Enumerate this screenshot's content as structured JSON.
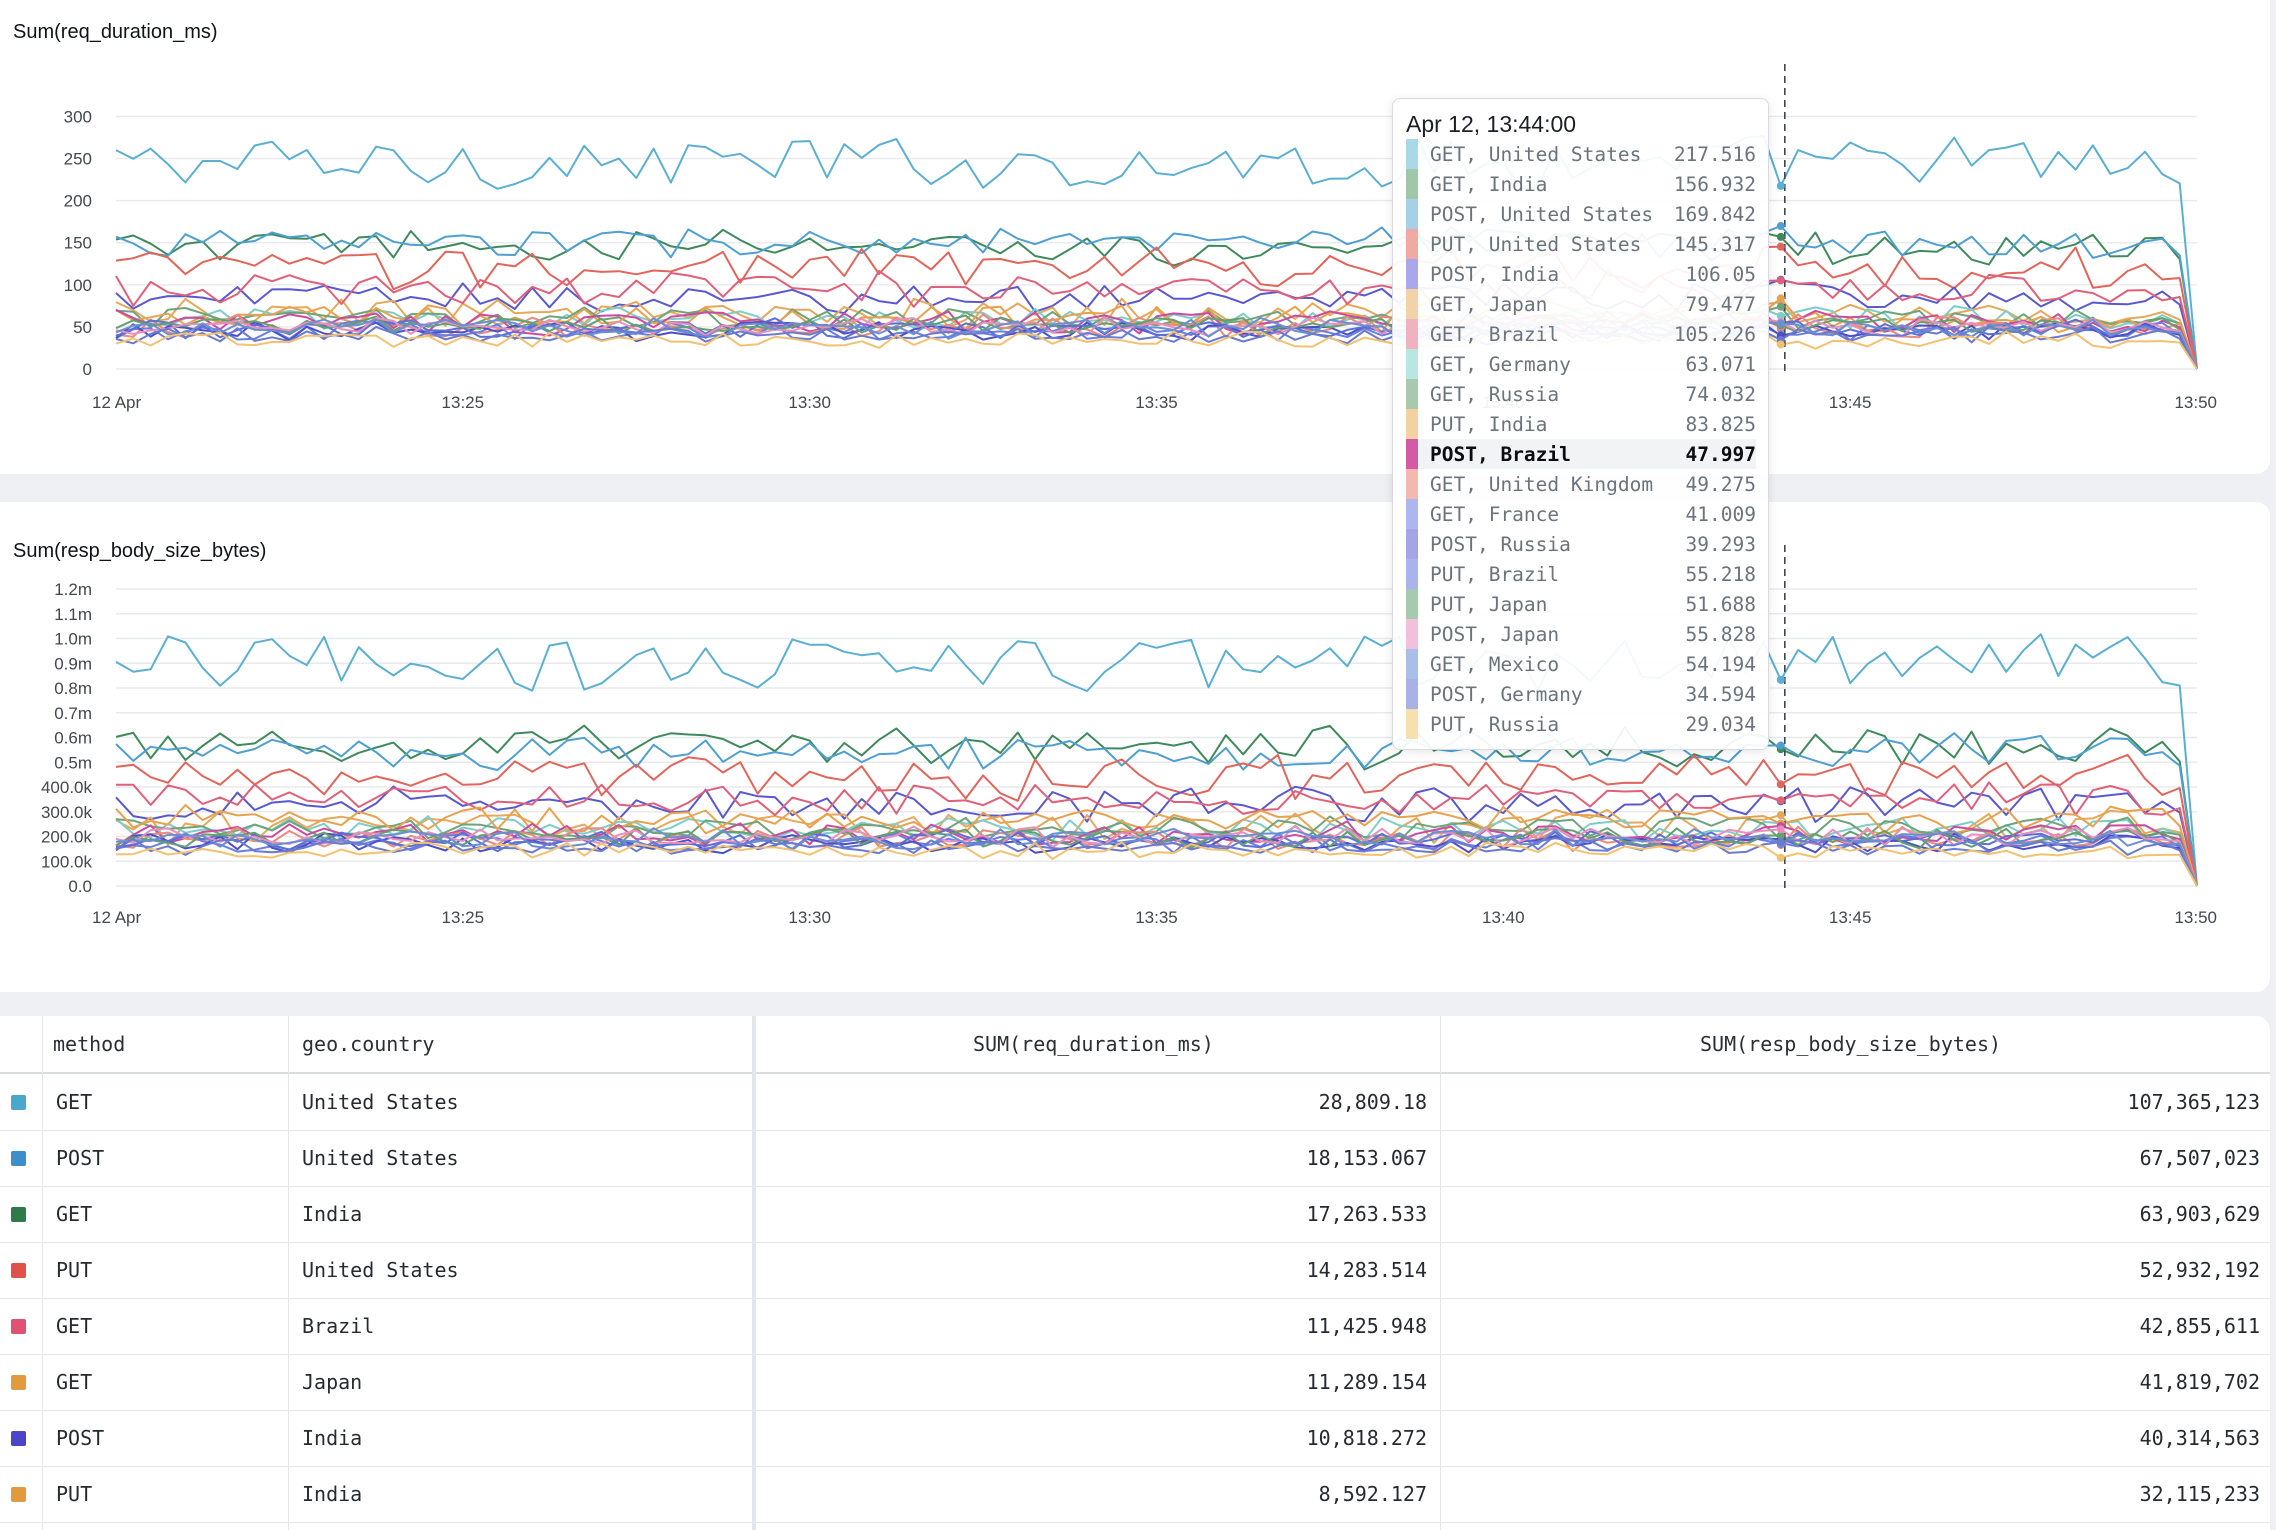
{
  "chart_data": [
    {
      "type": "line",
      "title": "Sum(req_duration_ms)",
      "ylim": [
        0,
        310
      ],
      "yticks": [
        "0",
        "50",
        "100",
        "150",
        "200",
        "250",
        "300"
      ],
      "xticks": [
        "12 Apr",
        "13:25",
        "13:30",
        "13:35",
        "13:40",
        "13:45",
        "13:50"
      ],
      "xrange": [
        "13:20",
        "13:50"
      ],
      "cursor_time": "13:44",
      "grid": true,
      "series": [
        {
          "name": "GET, United States",
          "color": "#5bafd1",
          "base": 245,
          "amp": 28,
          "hover": 217.516
        },
        {
          "name": "GET, India",
          "color": "#3f8a5c",
          "base": 145,
          "amp": 18,
          "hover": 156.932
        },
        {
          "name": "POST, United States",
          "color": "#4f9fd0",
          "base": 150,
          "amp": 16,
          "hover": 169.842
        },
        {
          "name": "PUT, United States",
          "color": "#e0655a",
          "base": 120,
          "amp": 22,
          "hover": 145.317
        },
        {
          "name": "POST, India",
          "color": "#5a58cf",
          "base": 85,
          "amp": 15,
          "hover": 106.05
        },
        {
          "name": "GET, Japan",
          "color": "#e6a85a",
          "base": 65,
          "amp": 16,
          "hover": 79.477
        },
        {
          "name": "GET, Brazil",
          "color": "#e0607a",
          "base": 95,
          "amp": 18,
          "hover": 105.226
        },
        {
          "name": "GET, Germany",
          "color": "#7dcdc8",
          "base": 60,
          "amp": 12,
          "hover": 63.071
        },
        {
          "name": "GET, Russia",
          "color": "#6fa37a",
          "base": 60,
          "amp": 12,
          "hover": 74.032
        },
        {
          "name": "PUT, India",
          "color": "#e8a24e",
          "base": 60,
          "amp": 14,
          "hover": 83.825
        },
        {
          "name": "POST, Brazil",
          "color": "#cc4aa0",
          "base": 55,
          "amp": 12,
          "hover": 47.997
        },
        {
          "name": "GET, United Kingdom",
          "color": "#ea8a7c",
          "base": 50,
          "amp": 12,
          "hover": 49.275
        },
        {
          "name": "GET, France",
          "color": "#6b7fe0",
          "base": 45,
          "amp": 10,
          "hover": 41.009
        },
        {
          "name": "POST, Russia",
          "color": "#4e4ec6",
          "base": 45,
          "amp": 10,
          "hover": 39.293
        },
        {
          "name": "PUT, Brazil",
          "color": "#5a6fd8",
          "base": 48,
          "amp": 10,
          "hover": 55.218
        },
        {
          "name": "PUT, Japan",
          "color": "#63a070",
          "base": 52,
          "amp": 10,
          "hover": 51.688
        },
        {
          "name": "POST, Japan",
          "color": "#e88fbe",
          "base": 50,
          "amp": 10,
          "hover": 55.828
        },
        {
          "name": "GET, Mexico",
          "color": "#6c8ed2",
          "base": 48,
          "amp": 10,
          "hover": 54.194
        },
        {
          "name": "POST, Germany",
          "color": "#6a7ad0",
          "base": 40,
          "amp": 9,
          "hover": 34.594
        },
        {
          "name": "PUT, Russia",
          "color": "#f2c270",
          "base": 35,
          "amp": 9,
          "hover": 29.034
        }
      ]
    },
    {
      "type": "line",
      "title": "Sum(resp_body_size_bytes)",
      "ylim": [
        0,
        1200000
      ],
      "yticks": [
        "0.0",
        "100.0k",
        "200.0k",
        "300.0k",
        "400.0k",
        "0.5m",
        "0.6m",
        "0.7m",
        "0.8m",
        "0.9m",
        "1.0m",
        "1.1m",
        "1.2m"
      ],
      "xticks": [
        "12 Apr",
        "13:25",
        "13:30",
        "13:35",
        "13:40",
        "13:45",
        "13:50"
      ],
      "xrange": [
        "13:20",
        "13:50"
      ],
      "cursor_time": "13:44",
      "grid": true,
      "series": [
        {
          "name": "GET, United States",
          "color": "#5bafd1",
          "base": 900000,
          "amp": 100000
        },
        {
          "name": "GET, India",
          "color": "#3f8a5c",
          "base": 560000,
          "amp": 70000
        },
        {
          "name": "POST, United States",
          "color": "#4f9fd0",
          "base": 540000,
          "amp": 60000
        },
        {
          "name": "PUT, United States",
          "color": "#e0655a",
          "base": 440000,
          "amp": 80000
        },
        {
          "name": "POST, India",
          "color": "#5a58cf",
          "base": 330000,
          "amp": 60000
        },
        {
          "name": "GET, Japan",
          "color": "#e6a85a",
          "base": 240000,
          "amp": 60000
        },
        {
          "name": "GET, Brazil",
          "color": "#e0607a",
          "base": 350000,
          "amp": 60000
        },
        {
          "name": "GET, Germany",
          "color": "#7dcdc8",
          "base": 230000,
          "amp": 45000
        },
        {
          "name": "GET, Russia",
          "color": "#6fa37a",
          "base": 230000,
          "amp": 45000
        },
        {
          "name": "PUT, India",
          "color": "#e8a24e",
          "base": 270000,
          "amp": 50000
        },
        {
          "name": "POST, Brazil",
          "color": "#cc4aa0",
          "base": 210000,
          "amp": 40000
        },
        {
          "name": "GET, United Kingdom",
          "color": "#ea8a7c",
          "base": 190000,
          "amp": 40000
        },
        {
          "name": "GET, France",
          "color": "#6b7fe0",
          "base": 175000,
          "amp": 35000
        },
        {
          "name": "POST, Russia",
          "color": "#4e4ec6",
          "base": 170000,
          "amp": 35000
        },
        {
          "name": "PUT, Brazil",
          "color": "#5a6fd8",
          "base": 185000,
          "amp": 35000
        },
        {
          "name": "PUT, Japan",
          "color": "#63a070",
          "base": 195000,
          "amp": 35000
        },
        {
          "name": "POST, Japan",
          "color": "#e88fbe",
          "base": 200000,
          "amp": 35000
        },
        {
          "name": "GET, Mexico",
          "color": "#6c8ed2",
          "base": 190000,
          "amp": 35000
        },
        {
          "name": "POST, Germany",
          "color": "#6a7ad0",
          "base": 160000,
          "amp": 30000
        },
        {
          "name": "PUT, Russia",
          "color": "#f2c270",
          "base": 140000,
          "amp": 30000
        }
      ]
    }
  ],
  "tooltip": {
    "title": "Apr 12, 13:44:00",
    "highlighted": "POST, Brazil",
    "rows": [
      {
        "label": "GET, United States",
        "value": "217.516",
        "color": "#a9d8e8"
      },
      {
        "label": "GET, India",
        "value": "156.932",
        "color": "#9fc7a8"
      },
      {
        "label": "POST, United States",
        "value": "169.842",
        "color": "#a6cfe8"
      },
      {
        "label": "PUT, United States",
        "value": "145.317",
        "color": "#f0aaa3"
      },
      {
        "label": "POST, India",
        "value": "106.05",
        "color": "#aaa8ea"
      },
      {
        "label": "GET, Japan",
        "value": "79.477",
        "color": "#f2d3a8"
      },
      {
        "label": "GET, Brazil",
        "value": "105.226",
        "color": "#f0b2c0"
      },
      {
        "label": "GET, Germany",
        "value": "63.071",
        "color": "#b8e6e2"
      },
      {
        "label": "GET, Russia",
        "value": "74.032",
        "color": "#a9c9ae"
      },
      {
        "label": "PUT, India",
        "value": "83.825",
        "color": "#f4d1a3"
      },
      {
        "label": "POST, Brazil",
        "value": "47.997",
        "color": "#d45aa8"
      },
      {
        "label": "GET, United Kingdom",
        "value": "49.275",
        "color": "#f3b9b0"
      },
      {
        "label": "GET, France",
        "value": "41.009",
        "color": "#aeb6ef"
      },
      {
        "label": "POST, Russia",
        "value": "39.293",
        "color": "#a5a4e4"
      },
      {
        "label": "PUT, Brazil",
        "value": "55.218",
        "color": "#a9b3ec"
      },
      {
        "label": "PUT, Japan",
        "value": "51.688",
        "color": "#a6caad"
      },
      {
        "label": "POST, Japan",
        "value": "55.828",
        "color": "#f2c0dc"
      },
      {
        "label": "GET, Mexico",
        "value": "54.194",
        "color": "#aabfe7"
      },
      {
        "label": "POST, Germany",
        "value": "34.594",
        "color": "#a9b1e7"
      },
      {
        "label": "PUT, Russia",
        "value": "29.034",
        "color": "#f8dfae"
      }
    ]
  },
  "table": {
    "headers": {
      "method": "method",
      "country": "geo.country",
      "duration": "SUM(req_duration_ms)",
      "size": "SUM(resp_body_size_bytes)"
    },
    "rows": [
      {
        "color": "#4aa8cf",
        "method": "GET",
        "country": "United States",
        "duration": "28,809.18",
        "size": "107,365,123"
      },
      {
        "color": "#3d8fcc",
        "method": "POST",
        "country": "United States",
        "duration": "18,153.067",
        "size": "67,507,023"
      },
      {
        "color": "#2f7a4a",
        "method": "GET",
        "country": "India",
        "duration": "17,263.533",
        "size": "63,903,629"
      },
      {
        "color": "#e05248",
        "method": "PUT",
        "country": "United States",
        "duration": "14,283.514",
        "size": "52,932,192"
      },
      {
        "color": "#e05272",
        "method": "GET",
        "country": "Brazil",
        "duration": "11,425.948",
        "size": "42,855,611"
      },
      {
        "color": "#e39a3f",
        "method": "GET",
        "country": "Japan",
        "duration": "11,289.154",
        "size": "41,819,702"
      },
      {
        "color": "#4a44c8",
        "method": "POST",
        "country": "India",
        "duration": "10,818.272",
        "size": "40,314,563"
      },
      {
        "color": "#e39a3f",
        "method": "PUT",
        "country": "India",
        "duration": "8,592.127",
        "size": "32,115,233"
      }
    ]
  }
}
